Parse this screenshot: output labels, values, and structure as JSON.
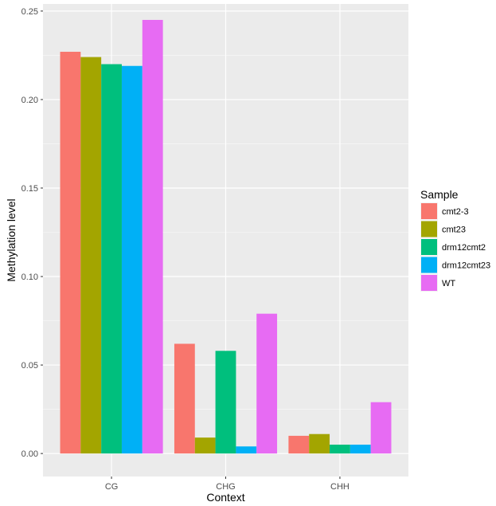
{
  "chart_data": {
    "type": "bar",
    "categories": [
      "CG",
      "CHG",
      "CHH"
    ],
    "series": [
      {
        "name": "cmt2-3",
        "color": "#F8766D",
        "values": [
          0.227,
          0.062,
          0.01
        ]
      },
      {
        "name": "cmt23",
        "color": "#A3A500",
        "values": [
          0.224,
          0.009,
          0.011
        ]
      },
      {
        "name": "drm12cmt2",
        "color": "#00BF7D",
        "values": [
          0.22,
          0.058,
          0.005
        ]
      },
      {
        "name": "drm12cmt23",
        "color": "#00B0F6",
        "values": [
          0.219,
          0.004,
          0.005
        ]
      },
      {
        "name": "WT",
        "color": "#E76BF3",
        "values": [
          0.245,
          0.079,
          0.029
        ]
      }
    ],
    "title": "",
    "xlabel": "Context",
    "ylabel": "Methylation level",
    "ylim": [
      -0.013,
      0.254
    ],
    "yticks": [
      0.0,
      0.05,
      0.1,
      0.15,
      0.2,
      0.25
    ],
    "ytick_labels": [
      "0.00",
      "0.05",
      "0.10",
      "0.15",
      "0.20",
      "0.25"
    ],
    "grid": true,
    "legend": {
      "title": "Sample",
      "position": "right"
    },
    "colors": {
      "panel": "#EBEBEB",
      "grid_major": "#FFFFFF"
    }
  }
}
